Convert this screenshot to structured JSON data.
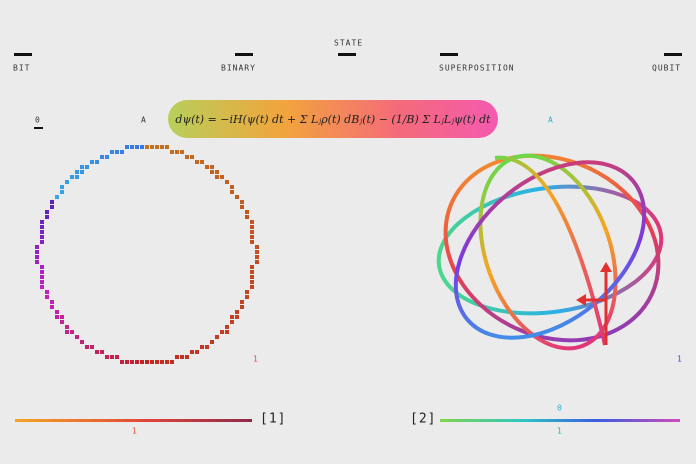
{
  "header": {
    "labels": [
      "BIT",
      "BINARY",
      "STATE",
      "SUPERPOSITION",
      "QUBIT"
    ]
  },
  "equation": "dψ(t) = −iH(ψ(t) dt + Σ Lⱼρ(t) dBⱼ(t) − (1/B) Σ LⱼLⱼψ(t) dt",
  "left": {
    "zero": "0",
    "a": "A",
    "one": "1",
    "index": "[1]",
    "scale_label": "1"
  },
  "right": {
    "a": "A",
    "one": "1",
    "index": "[2]",
    "scale_top": "0",
    "scale_bottom": "1"
  }
}
